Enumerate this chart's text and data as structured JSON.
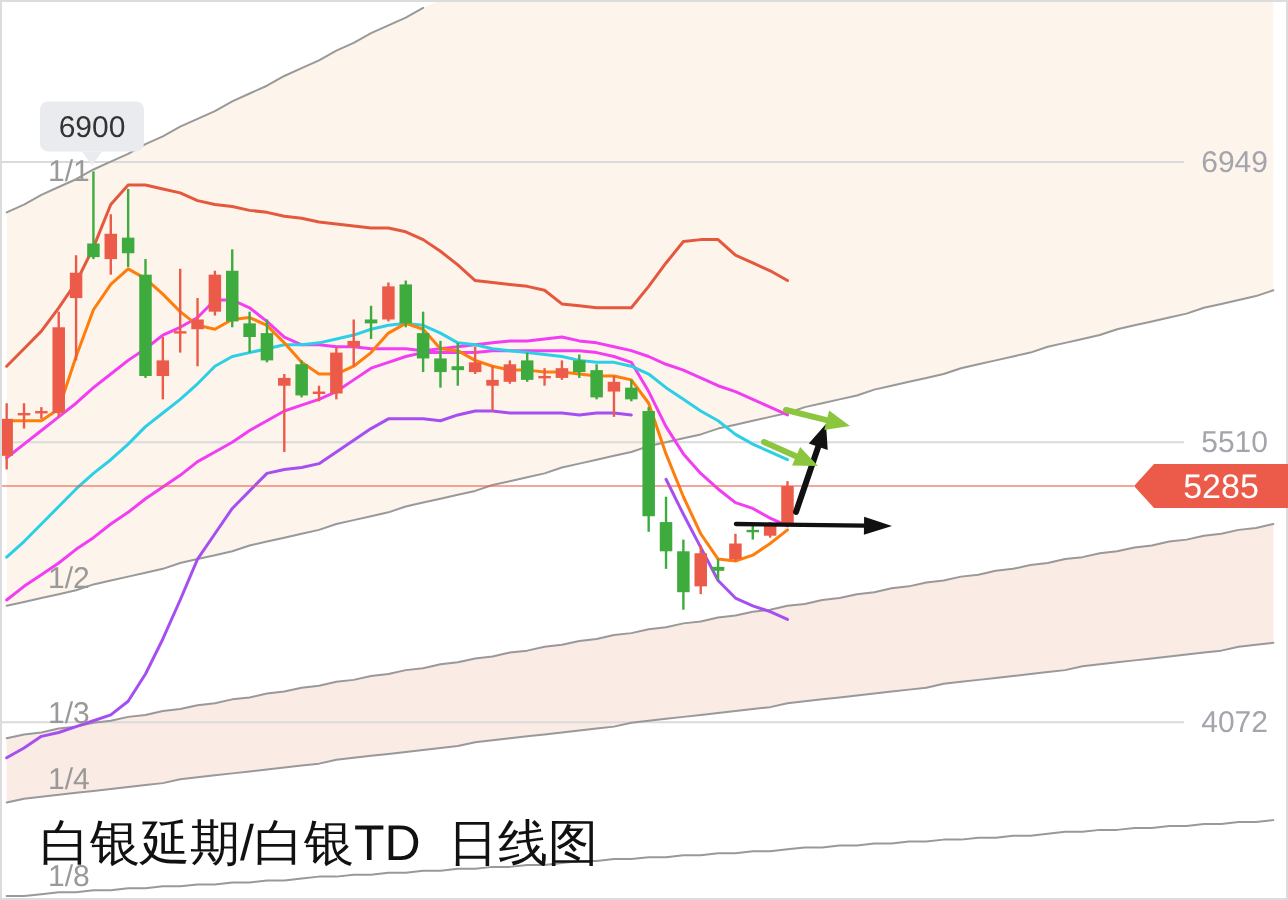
{
  "chart_data": {
    "type": "candlestick",
    "title": "白银延期/白银TD  日线图",
    "categories": [
      null,
      null,
      null,
      null,
      null,
      null,
      null,
      null,
      null,
      null,
      null,
      null,
      null,
      null,
      null,
      null,
      null,
      null,
      null,
      null,
      null,
      null,
      null,
      null,
      null,
      null,
      null,
      null,
      null,
      null,
      null,
      null,
      null,
      null,
      null,
      null,
      null,
      null,
      null,
      null,
      null,
      null,
      null,
      null,
      null,
      null,
      null,
      null,
      null,
      null,
      null,
      null,
      null,
      null,
      null,
      null,
      null,
      null,
      null,
      null,
      null,
      null,
      null,
      null,
      null,
      null,
      null,
      null,
      null,
      null,
      null,
      null,
      null,
      null
    ],
    "ohlc": [
      [
        5440,
        5710,
        5370,
        5630
      ],
      [
        5650,
        5710,
        5580,
        5660
      ],
      [
        5660,
        5690,
        5630,
        5670
      ],
      [
        5660,
        6180,
        5640,
        6100
      ],
      [
        6250,
        6470,
        5930,
        6380
      ],
      [
        6530,
        6900,
        6450,
        6460
      ],
      [
        6450,
        6680,
        6370,
        6580
      ],
      [
        6560,
        6810,
        6410,
        6480
      ],
      [
        6370,
        6450,
        5840,
        5850
      ],
      [
        5850,
        6050,
        5730,
        5930
      ],
      [
        6070,
        6400,
        5970,
        6080
      ],
      [
        6090,
        6250,
        5900,
        6140
      ],
      [
        6180,
        6390,
        6160,
        6370
      ],
      [
        6390,
        6500,
        6100,
        6130
      ],
      [
        6120,
        6180,
        5970,
        6050
      ],
      [
        6070,
        6140,
        5920,
        5930
      ],
      [
        5800,
        5860,
        5460,
        5840
      ],
      [
        5910,
        5930,
        5740,
        5750
      ],
      [
        5760,
        5800,
        5720,
        5770
      ],
      [
        5760,
        6000,
        5730,
        5970
      ],
      [
        6000,
        6140,
        5900,
        6030
      ],
      [
        6140,
        6210,
        6040,
        6120
      ],
      [
        6140,
        6330,
        6130,
        6310
      ],
      [
        6320,
        6340,
        6100,
        6120
      ],
      [
        6070,
        6180,
        5870,
        5940
      ],
      [
        5940,
        6030,
        5790,
        5870
      ],
      [
        5900,
        6020,
        5800,
        5880
      ],
      [
        5870,
        6000,
        5860,
        5920
      ],
      [
        5800,
        5900,
        5670,
        5830
      ],
      [
        5820,
        5930,
        5810,
        5910
      ],
      [
        5930,
        5970,
        5820,
        5830
      ],
      [
        5840,
        5890,
        5800,
        5850
      ],
      [
        5840,
        5930,
        5830,
        5890
      ],
      [
        5930,
        5960,
        5840,
        5870
      ],
      [
        5880,
        5910,
        5730,
        5740
      ],
      [
        5770,
        5850,
        5640,
        5820
      ],
      [
        5790,
        5830,
        5720,
        5730
      ],
      [
        5670,
        5690,
        5050,
        5130
      ],
      [
        5100,
        5230,
        4860,
        4950
      ],
      [
        4950,
        5010,
        4650,
        4740
      ],
      [
        4770,
        4980,
        4730,
        4940
      ],
      [
        4870,
        4910,
        4800,
        4850
      ],
      [
        4910,
        5040,
        4900,
        4990
      ],
      [
        5060,
        5090,
        5010,
        5050
      ],
      [
        5030,
        5100,
        5020,
        5080
      ],
      [
        5090,
        5310,
        5080,
        5285
      ],
      null,
      null,
      null,
      null,
      null,
      null,
      null,
      null,
      null,
      null,
      null,
      null,
      null,
      null,
      null,
      null,
      null,
      null,
      null,
      null,
      null,
      null,
      null,
      null,
      null,
      null,
      null,
      null
    ],
    "ylim": [
      3160,
      7780
    ],
    "yticks": [
      4072,
      5510,
      6949
    ],
    "grid": "y",
    "tick_labels": "y",
    "series": [
      {
        "type": "line",
        "name": "1/1",
        "color": "#999999",
        "values": [
          6690,
          6730,
          6780,
          6820,
          6860,
          6910,
          6950,
          6990,
          7040,
          7080,
          7130,
          7170,
          7210,
          7260,
          7300,
          7340,
          7390,
          7430,
          7470,
          7520,
          7560,
          7610,
          7650,
          7690,
          7740,
          null,
          null,
          null,
          null,
          null,
          null,
          null,
          null,
          null,
          null,
          null,
          null,
          null,
          null,
          null,
          null,
          null,
          null,
          null,
          null,
          null,
          null,
          null,
          null,
          null,
          null,
          null,
          null,
          null,
          null,
          null,
          null,
          null,
          null,
          null,
          null,
          null,
          null,
          null,
          null,
          null,
          null,
          null,
          null,
          null,
          null,
          null,
          null,
          null
        ]
      },
      {
        "type": "line",
        "name": "1/2",
        "color": "#999999",
        "values": [
          4670,
          4690,
          4710,
          4730,
          4750,
          4780,
          4800,
          4820,
          4840,
          4860,
          4890,
          4910,
          4930,
          4950,
          4980,
          5000,
          5020,
          5040,
          5060,
          5090,
          5110,
          5130,
          5150,
          5180,
          5200,
          5220,
          5240,
          5260,
          5290,
          5310,
          5330,
          5350,
          5380,
          5400,
          5420,
          5440,
          5460,
          5490,
          5510,
          5530,
          5550,
          5580,
          5600,
          5620,
          5640,
          5660,
          5690,
          5710,
          5730,
          5750,
          5780,
          5800,
          5820,
          5840,
          5860,
          5890,
          5910,
          5930,
          5950,
          5970,
          6000,
          6020,
          6040,
          6060,
          6090,
          6110,
          6130,
          6150,
          6170,
          6200,
          6220,
          6240,
          6260,
          6290
        ],
        "upper": [
          6690,
          6730,
          6780,
          6820,
          6860,
          6910,
          6950,
          6990,
          7040,
          7080,
          7130,
          7170,
          7210,
          7260,
          7300,
          7340,
          7390,
          7430,
          7470,
          7520,
          7560,
          7610,
          7650,
          7690,
          7740,
          7780,
          7780,
          7780,
          7780,
          7780,
          7780,
          7780,
          7780,
          7780,
          7780,
          7780,
          7780,
          7780,
          7780,
          7780,
          7780,
          7780,
          7780,
          7780,
          7780,
          7780,
          7780,
          7780,
          7780,
          7780,
          7780,
          7780,
          7780,
          7780,
          7780,
          7780,
          7780,
          7780,
          7780,
          7780,
          7780,
          7780,
          7780,
          7780,
          7780,
          7780,
          7780,
          7780,
          7780,
          7780,
          7780,
          7780,
          7780,
          7780
        ],
        "lower": [
          4670,
          4690,
          4710,
          4730,
          4750,
          4780,
          4800,
          4820,
          4840,
          4860,
          4890,
          4910,
          4930,
          4950,
          4980,
          5000,
          5020,
          5040,
          5060,
          5090,
          5110,
          5130,
          5150,
          5180,
          5200,
          5220,
          5240,
          5260,
          5290,
          5310,
          5330,
          5350,
          5380,
          5400,
          5420,
          5440,
          5460,
          5490,
          5510,
          5530,
          5550,
          5580,
          5600,
          5620,
          5640,
          5660,
          5690,
          5710,
          5730,
          5750,
          5780,
          5800,
          5820,
          5840,
          5860,
          5890,
          5910,
          5930,
          5950,
          5970,
          6000,
          6020,
          6040,
          6060,
          6090,
          6110,
          6130,
          6150,
          6170,
          6200,
          6220,
          6240,
          6260,
          6290
        ]
      },
      {
        "type": "line",
        "name": "1/3",
        "color": "#999999",
        "values": [
          3990,
          4010,
          4020,
          4040,
          4050,
          4070,
          4080,
          4100,
          4110,
          4130,
          4140,
          4160,
          4170,
          4190,
          4200,
          4220,
          4230,
          4250,
          4260,
          4280,
          4290,
          4310,
          4320,
          4340,
          4350,
          4370,
          4380,
          4400,
          4410,
          4430,
          4440,
          4460,
          4470,
          4490,
          4500,
          4520,
          4530,
          4550,
          4560,
          4580,
          4590,
          4610,
          4620,
          4640,
          4650,
          4670,
          4680,
          4700,
          4710,
          4730,
          4740,
          4760,
          4770,
          4790,
          4800,
          4820,
          4830,
          4850,
          4860,
          4880,
          4890,
          4910,
          4920,
          4940,
          4950,
          4970,
          4980,
          5000,
          5010,
          5030,
          5040,
          5060,
          5070,
          5090
        ]
      },
      {
        "type": "line",
        "name": "1/4",
        "color": "#999999",
        "values": [
          3660,
          3680,
          3690,
          3700,
          3710,
          3720,
          3730,
          3740,
          3750,
          3760,
          3780,
          3790,
          3800,
          3810,
          3820,
          3830,
          3840,
          3850,
          3860,
          3880,
          3890,
          3900,
          3910,
          3920,
          3930,
          3940,
          3950,
          3970,
          3980,
          3990,
          4000,
          4010,
          4020,
          4030,
          4040,
          4050,
          4070,
          4080,
          4090,
          4100,
          4110,
          4120,
          4130,
          4140,
          4150,
          4170,
          4180,
          4190,
          4200,
          4210,
          4220,
          4230,
          4240,
          4250,
          4270,
          4280,
          4290,
          4300,
          4310,
          4320,
          4330,
          4340,
          4360,
          4370,
          4380,
          4390,
          4400,
          4410,
          4420,
          4430,
          4440,
          4460,
          4470,
          4480
        ],
        "upper": [
          3990,
          4010,
          4020,
          4040,
          4050,
          4070,
          4080,
          4100,
          4110,
          4130,
          4140,
          4160,
          4170,
          4190,
          4200,
          4220,
          4230,
          4250,
          4260,
          4280,
          4290,
          4310,
          4320,
          4340,
          4350,
          4370,
          4380,
          4400,
          4410,
          4430,
          4440,
          4460,
          4470,
          4490,
          4500,
          4520,
          4530,
          4550,
          4560,
          4580,
          4590,
          4610,
          4620,
          4640,
          4650,
          4670,
          4680,
          4700,
          4710,
          4730,
          4740,
          4760,
          4770,
          4790,
          4800,
          4820,
          4830,
          4850,
          4860,
          4880,
          4890,
          4910,
          4920,
          4940,
          4950,
          4970,
          4980,
          5000,
          5010,
          5030,
          5040,
          5060,
          5070,
          5090
        ],
        "lower": [
          3660,
          3680,
          3690,
          3700,
          3710,
          3720,
          3730,
          3740,
          3750,
          3760,
          3780,
          3790,
          3800,
          3810,
          3820,
          3830,
          3840,
          3850,
          3860,
          3880,
          3890,
          3900,
          3910,
          3920,
          3930,
          3940,
          3950,
          3970,
          3980,
          3990,
          4000,
          4010,
          4020,
          4030,
          4040,
          4050,
          4070,
          4080,
          4090,
          4100,
          4110,
          4120,
          4130,
          4140,
          4150,
          4170,
          4180,
          4190,
          4200,
          4210,
          4220,
          4230,
          4240,
          4250,
          4270,
          4280,
          4290,
          4300,
          4310,
          4320,
          4330,
          4340,
          4360,
          4370,
          4380,
          4390,
          4400,
          4410,
          4420,
          4430,
          4440,
          4460,
          4470,
          4480
        ]
      },
      {
        "type": "line",
        "name": "1/8",
        "color": "#999999",
        "values": [
          3180,
          3180,
          3190,
          3200,
          3200,
          3210,
          3210,
          3220,
          3220,
          3230,
          3230,
          3240,
          3240,
          3250,
          3250,
          3260,
          3260,
          3270,
          3280,
          3280,
          3290,
          3290,
          3300,
          3300,
          3310,
          3310,
          3320,
          3320,
          3330,
          3330,
          3340,
          3340,
          3350,
          3360,
          3360,
          3370,
          3370,
          3380,
          3380,
          3390,
          3390,
          3400,
          3400,
          3410,
          3410,
          3420,
          3430,
          3430,
          3440,
          3440,
          3450,
          3450,
          3460,
          3460,
          3470,
          3470,
          3480,
          3480,
          3490,
          3490,
          3500,
          3510,
          3510,
          3520,
          3520,
          3530,
          3530,
          3540,
          3540,
          3550,
          3550,
          3560,
          3560,
          3570
        ]
      },
      {
        "type": "line",
        "color": "#e4583e",
        "values": [
          5900,
          5990,
          6080,
          6200,
          6330,
          6510,
          6730,
          6830,
          6830,
          6810,
          6790,
          6750,
          6730,
          6720,
          6700,
          6690,
          6670,
          6660,
          6640,
          6630,
          6620,
          6610,
          6610,
          6590,
          6550,
          6490,
          6420,
          6340,
          6330,
          6320,
          6310,
          6290,
          6220,
          6210,
          6200,
          6200,
          6200,
          6310,
          6430,
          6540,
          6550,
          6550,
          6470,
          6430,
          6390,
          6340,
          null,
          null,
          null,
          null,
          null,
          null,
          null,
          null,
          null,
          null,
          null,
          null,
          null,
          null,
          null,
          null,
          null,
          null,
          null,
          null,
          null,
          null,
          null,
          null,
          null,
          null,
          null,
          null
        ]
      },
      {
        "type": "line",
        "color": "#a64ff0",
        "values": [
          3890,
          3940,
          4000,
          4020,
          4050,
          4080,
          4110,
          4180,
          4320,
          4500,
          4700,
          4910,
          5040,
          5170,
          5260,
          5350,
          5370,
          5380,
          5400,
          5460,
          5520,
          5580,
          5630,
          5630,
          5630,
          5620,
          5650,
          5670,
          5670,
          5660,
          5660,
          5660,
          5660,
          5650,
          5660,
          5660,
          5650,
          null,
          5320,
          5140,
          4970,
          4800,
          4710,
          4670,
          4640,
          4600,
          null,
          null,
          null,
          null,
          null,
          null,
          null,
          null,
          null,
          null,
          null,
          null,
          null,
          null,
          null,
          null,
          null,
          null,
          null,
          null,
          null,
          null,
          null,
          null,
          null,
          null,
          null,
          null
        ]
      },
      {
        "type": "line",
        "color": "#f23ef2",
        "values": [
          4700,
          4770,
          4830,
          4890,
          4960,
          5020,
          5090,
          5150,
          5220,
          5280,
          5340,
          5410,
          5460,
          5510,
          5570,
          5620,
          5670,
          5700,
          5730,
          5770,
          5830,
          5890,
          5920,
          5950,
          5970,
          5970,
          5970,
          5970,
          5980,
          5980,
          5980,
          5980,
          5980,
          5980,
          5970,
          5950,
          5920,
          5770,
          5590,
          5450,
          5350,
          5270,
          5200,
          5170,
          5120,
          5080,
          null,
          null,
          null,
          null,
          null,
          null,
          null,
          null,
          null,
          null,
          null,
          null,
          null,
          null,
          null,
          null,
          null,
          null,
          null,
          null,
          null,
          null,
          null,
          null,
          null,
          null,
          null,
          null
        ]
      },
      {
        "type": "line",
        "color": "#f23ef2",
        "values": [
          5430,
          5500,
          5570,
          5640,
          5710,
          5790,
          5860,
          5930,
          5990,
          6060,
          6100,
          6150,
          6240,
          6240,
          6200,
          6130,
          6050,
          6010,
          6010,
          6000,
          6000,
          5990,
          5990,
          5990,
          5980,
          5990,
          6000,
          6010,
          6020,
          6030,
          6030,
          6040,
          6050,
          6030,
          6020,
          6000,
          5980,
          5950,
          5910,
          5880,
          5840,
          5800,
          5770,
          5730,
          5690,
          5650,
          null,
          null,
          null,
          null,
          null,
          null,
          null,
          null,
          null,
          null,
          null,
          null,
          null,
          null,
          null,
          null,
          null,
          null,
          null,
          null,
          null,
          null,
          null,
          null,
          null,
          null,
          null,
          null
        ]
      },
      {
        "type": "line",
        "color": "#2ccfe6",
        "values": [
          4920,
          5000,
          5090,
          5180,
          5270,
          5350,
          5420,
          5500,
          5590,
          5660,
          5730,
          5810,
          5900,
          5950,
          5970,
          5990,
          6010,
          6010,
          6020,
          6040,
          6060,
          6090,
          6110,
          6120,
          6110,
          6070,
          6020,
          6010,
          5990,
          5980,
          5970,
          5960,
          5950,
          5930,
          5920,
          5920,
          5900,
          5860,
          5790,
          5730,
          5670,
          5620,
          5550,
          5500,
          5460,
          5420,
          null,
          null,
          null,
          null,
          null,
          null,
          null,
          null,
          null,
          null,
          null,
          null,
          null,
          null,
          null,
          null,
          null,
          null,
          null,
          null,
          null,
          null,
          null,
          null,
          null,
          null,
          null,
          null
        ]
      },
      {
        "type": "line",
        "color": "#ff7d0a",
        "values": [
          5620,
          5620,
          5620,
          5680,
          5950,
          6190,
          6320,
          6400,
          6350,
          6270,
          6180,
          6110,
          6090,
          6140,
          6150,
          6110,
          6020,
          5920,
          5860,
          5860,
          5900,
          5970,
          6070,
          6120,
          6090,
          5990,
          5980,
          5930,
          5900,
          5880,
          5880,
          5870,
          5870,
          5860,
          5850,
          5850,
          5830,
          5710,
          5450,
          5230,
          5040,
          4910,
          4900,
          4930,
          4990,
          5060,
          null,
          null,
          null,
          null,
          null,
          null,
          null,
          null,
          null,
          null,
          null,
          null,
          null,
          null,
          null,
          null,
          null,
          null,
          null,
          null,
          null,
          null,
          null,
          null,
          null,
          null,
          null,
          null
        ]
      }
    ],
    "ref_lines": [
      {
        "axis": "y",
        "value": 5285,
        "label": "5285",
        "color": "#ec5b4a"
      }
    ],
    "annotations": [
      {
        "text": "6900",
        "y": 6900
      }
    ]
  }
}
